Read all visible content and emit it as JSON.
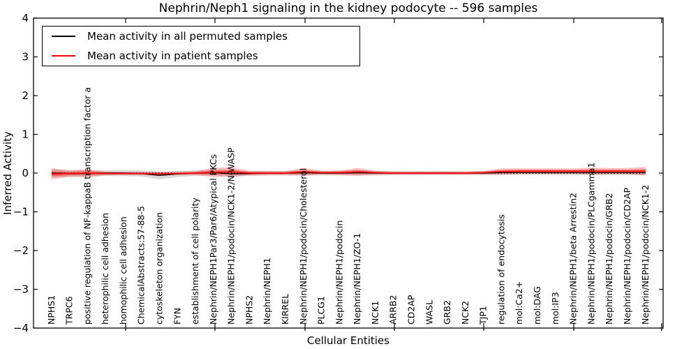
{
  "figure": {
    "title": "Nephrin/Neph1 signaling in the kidney podocyte -- 596 samples",
    "xlabel": "Cellular Entities",
    "ylabel": "Inferred Activity"
  },
  "legend": {
    "items": [
      {
        "label": "Mean activity in all permuted samples",
        "color": "#000000"
      },
      {
        "label": "Mean activity in patient samples",
        "color": "#ff0000"
      }
    ],
    "position": "upper left"
  },
  "chart_data": {
    "type": "line",
    "title": "Nephrin/Neph1 signaling in the kidney podocyte -- 596 samples",
    "xlabel": "Cellular Entities",
    "ylabel": "Inferred Activity",
    "ylim": [
      -4,
      4
    ],
    "yticks": [
      4,
      3,
      2,
      1,
      0,
      -1,
      -2,
      -3,
      -4
    ],
    "grid": false,
    "legend_position": "upper left",
    "zero_reference_line": {
      "y": 0,
      "style": "dotted",
      "color": "#000000"
    },
    "categories": [
      "NPHS1",
      "TRPC6",
      "positive regulation of NF-kappaB transcription factor a",
      "heterophilic cell adhesion",
      "homophilic cell adhesion",
      "ChemicalAbstracts:57-88-5",
      "cytoskeleton organization",
      "FYN",
      "establishment of cell polarity",
      "Nephrin/NEPH1Par3/Par6/Atypical PKCs",
      "Nephrin/NEPH1/podocin/NCK1-2/N-WASP",
      "NPHS2",
      "Nephrin/NEPH1",
      "KIRREL",
      "Nephrin/NEPH1/podocin/Cholesterol",
      "PLCG1",
      "Nephrin/NEPH1/podocin",
      "Nephrin/NEPH1/ZO-1",
      "NCK1",
      "ARRB2",
      "CD2AP",
      "WASL",
      "GRB2",
      "NCK2",
      "TJP1",
      "regulation of endocytosis",
      "mol:Ca2+",
      "mol:DAG",
      "mol:IP3",
      "Nephrin/NEPH1/beta Arrestin2",
      "Nephrin/NEPH1/podocin/PLCgamma1",
      "Nephrin/NEPH1/podocin/GRB2",
      "Nephrin/NEPH1/podocin/CD2AP",
      "Nephrin/NEPH1/podocin/NCK1-2"
    ],
    "series": [
      {
        "name": "Mean activity in all permuted samples",
        "color": "#000000",
        "band_color": "rgba(130,130,130,0.30)",
        "values": [
          0,
          -0.01,
          -0.01,
          0,
          0,
          -0.01,
          -0.06,
          -0.02,
          0,
          0.01,
          -0.02,
          -0.01,
          0,
          0,
          0.01,
          0,
          0,
          0.01,
          0,
          0,
          0,
          0,
          0,
          0,
          0,
          0.01,
          0.01,
          0.01,
          0.01,
          0.01,
          0.01,
          0.01,
          0.01,
          0.01
        ],
        "band_halfwidth": [
          0.1,
          0.09,
          0.08,
          0.07,
          0.08,
          0.08,
          0.1,
          0.08,
          0.07,
          0.07,
          0.07,
          0.06,
          0.06,
          0.06,
          0.06,
          0.06,
          0.06,
          0.07,
          0.06,
          0.05,
          0.05,
          0.05,
          0.05,
          0.05,
          0.05,
          0.06,
          0.06,
          0.06,
          0.06,
          0.06,
          0.06,
          0.06,
          0.06,
          0.07
        ]
      },
      {
        "name": "Mean activity in patient samples",
        "color": "#ff0000",
        "band_color": "rgba(255,0,0,0.25)",
        "band_inner_color": "rgba(255,0,0,0.35)",
        "values": [
          -0.02,
          -0.01,
          0,
          -0.01,
          -0.01,
          -0.01,
          -0.02,
          -0.01,
          0,
          0.02,
          0.03,
          0,
          0,
          0,
          0.03,
          0.01,
          0.01,
          0.03,
          0.01,
          0,
          0,
          0,
          0,
          0,
          0.01,
          0.04,
          0.05,
          0.05,
          0.05,
          0.05,
          0.05,
          0.05,
          0.05,
          0.05
        ],
        "band_halfwidth": [
          0.14,
          0.08,
          0.1,
          0.05,
          0.04,
          0.04,
          0.05,
          0.04,
          0.05,
          0.12,
          0.12,
          0.06,
          0.05,
          0.05,
          0.1,
          0.05,
          0.06,
          0.1,
          0.05,
          0.04,
          0.04,
          0.04,
          0.04,
          0.04,
          0.05,
          0.08,
          0.07,
          0.07,
          0.07,
          0.07,
          0.09,
          0.08,
          0.08,
          0.11
        ]
      }
    ]
  }
}
